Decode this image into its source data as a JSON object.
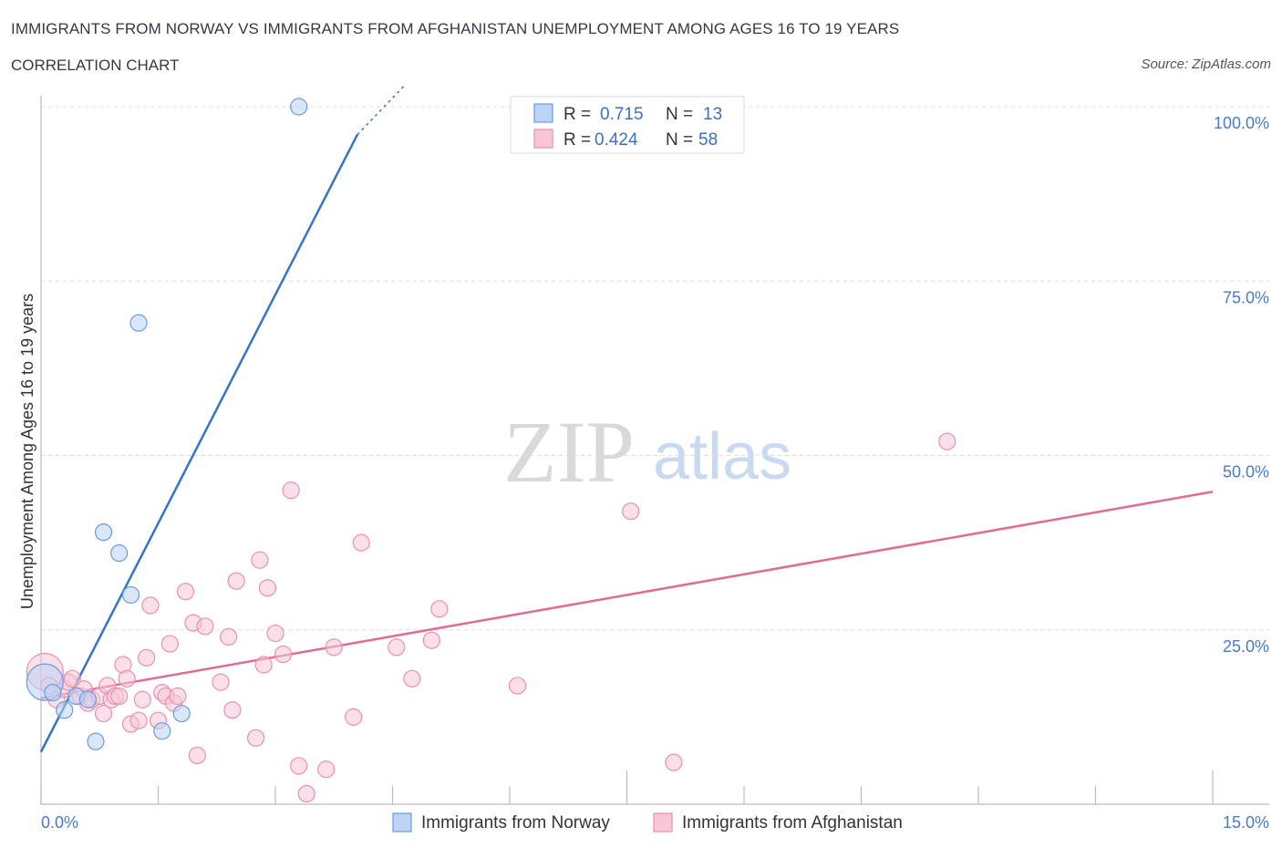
{
  "header": {
    "title": "IMMIGRANTS FROM NORWAY VS IMMIGRANTS FROM AFGHANISTAN UNEMPLOYMENT AMONG AGES 16 TO 19 YEARS",
    "subtitle": "CORRELATION CHART",
    "source": "Source: ZipAtlas.com"
  },
  "watermark": {
    "zip": "ZIP",
    "atlas": "atlas"
  },
  "colors": {
    "norway_fill": "#bcd4f5",
    "norway_stroke": "#6b9be0",
    "norway_line": "#3673c9",
    "afghan_fill": "#f8c6d6",
    "afghan_stroke": "#e890ae",
    "afghan_line": "#e06b95",
    "tick": "#4a7cc4",
    "grid": "#dddddd"
  },
  "legend_top": {
    "rows": [
      {
        "r_label": "R =",
        "r_value": "0.715",
        "n_label": "N =",
        "n_value": "13"
      },
      {
        "r_label": "R =",
        "r_value": "0.424",
        "n_label": "N =",
        "n_value": "58"
      }
    ]
  },
  "legend_bottom": {
    "items": [
      "Immigrants from Norway",
      "Immigrants from Afghanistan"
    ]
  },
  "chart_data": {
    "type": "scatter",
    "title": "IMMIGRANTS FROM NORWAY VS IMMIGRANTS FROM AFGHANISTAN UNEMPLOYMENT AMONG AGES 16 TO 19 YEARS",
    "xlabel": "",
    "ylabel": "Unemployment Among Ages 16 to 19 years",
    "xlim": [
      0,
      15
    ],
    "ylim": [
      0,
      100
    ],
    "x_tick_labels": [
      "0.0%",
      "15.0%"
    ],
    "y_tick_labels": [
      "100.0%",
      "75.0%",
      "50.0%",
      "25.0%"
    ],
    "y_ticks": [
      100,
      75,
      50,
      25
    ],
    "grid": true,
    "series": [
      {
        "name": "Immigrants from Norway",
        "R": 0.715,
        "N": 13,
        "trend": {
          "x": [
            0.0,
            4.05
          ],
          "y": [
            7.5,
            96.0
          ]
        },
        "points": [
          {
            "x": 0.05,
            "y": 17.5,
            "large": true
          },
          {
            "x": 0.15,
            "y": 16.0
          },
          {
            "x": 0.3,
            "y": 13.5
          },
          {
            "x": 0.45,
            "y": 15.5
          },
          {
            "x": 0.6,
            "y": 15.0
          },
          {
            "x": 0.7,
            "y": 9.0
          },
          {
            "x": 0.8,
            "y": 39.0
          },
          {
            "x": 1.0,
            "y": 36.0
          },
          {
            "x": 1.15,
            "y": 30.0
          },
          {
            "x": 1.25,
            "y": 69.0
          },
          {
            "x": 1.55,
            "y": 10.5
          },
          {
            "x": 1.8,
            "y": 13.0
          },
          {
            "x": 3.3,
            "y": 100.0
          }
        ]
      },
      {
        "name": "Immigrants from Afghanistan",
        "R": 0.424,
        "N": 58,
        "trend": {
          "x": [
            0.0,
            15.0
          ],
          "y": [
            15.2,
            44.8
          ]
        },
        "points": [
          {
            "x": 0.05,
            "y": 19.0,
            "large": true
          },
          {
            "x": 0.1,
            "y": 17.0
          },
          {
            "x": 0.2,
            "y": 15.0
          },
          {
            "x": 0.3,
            "y": 16.5
          },
          {
            "x": 0.35,
            "y": 17.5
          },
          {
            "x": 0.4,
            "y": 18.0
          },
          {
            "x": 0.5,
            "y": 15.5
          },
          {
            "x": 0.55,
            "y": 16.5
          },
          {
            "x": 0.6,
            "y": 14.5
          },
          {
            "x": 0.65,
            "y": 15.0
          },
          {
            "x": 0.75,
            "y": 15.5
          },
          {
            "x": 0.8,
            "y": 13.0
          },
          {
            "x": 0.85,
            "y": 17.0
          },
          {
            "x": 0.9,
            "y": 15.0
          },
          {
            "x": 0.95,
            "y": 15.5
          },
          {
            "x": 1.0,
            "y": 15.5
          },
          {
            "x": 1.05,
            "y": 20.0
          },
          {
            "x": 1.1,
            "y": 18.0
          },
          {
            "x": 1.15,
            "y": 11.5
          },
          {
            "x": 1.25,
            "y": 12.0
          },
          {
            "x": 1.3,
            "y": 15.0
          },
          {
            "x": 1.35,
            "y": 21.0
          },
          {
            "x": 1.4,
            "y": 28.5
          },
          {
            "x": 1.5,
            "y": 12.0
          },
          {
            "x": 1.55,
            "y": 16.0
          },
          {
            "x": 1.6,
            "y": 15.5
          },
          {
            "x": 1.65,
            "y": 23.0
          },
          {
            "x": 1.7,
            "y": 14.5
          },
          {
            "x": 1.75,
            "y": 15.5
          },
          {
            "x": 1.85,
            "y": 30.5
          },
          {
            "x": 1.95,
            "y": 26.0
          },
          {
            "x": 2.0,
            "y": 7.0
          },
          {
            "x": 2.1,
            "y": 25.5
          },
          {
            "x": 2.3,
            "y": 17.5
          },
          {
            "x": 2.4,
            "y": 24.0
          },
          {
            "x": 2.45,
            "y": 13.5
          },
          {
            "x": 2.5,
            "y": 32.0
          },
          {
            "x": 2.75,
            "y": 9.5
          },
          {
            "x": 2.8,
            "y": 35.0
          },
          {
            "x": 2.85,
            "y": 20.0
          },
          {
            "x": 2.9,
            "y": 31.0
          },
          {
            "x": 3.0,
            "y": 24.5
          },
          {
            "x": 3.1,
            "y": 21.5
          },
          {
            "x": 3.2,
            "y": 45.0
          },
          {
            "x": 3.3,
            "y": 5.5
          },
          {
            "x": 3.4,
            "y": 1.5
          },
          {
            "x": 3.65,
            "y": 5.0
          },
          {
            "x": 3.75,
            "y": 22.5
          },
          {
            "x": 4.0,
            "y": 12.5
          },
          {
            "x": 4.1,
            "y": 37.5
          },
          {
            "x": 4.55,
            "y": 22.5
          },
          {
            "x": 4.75,
            "y": 18.0
          },
          {
            "x": 5.0,
            "y": 23.5
          },
          {
            "x": 5.1,
            "y": 28.0
          },
          {
            "x": 6.1,
            "y": 17.0
          },
          {
            "x": 7.55,
            "y": 42.0
          },
          {
            "x": 8.1,
            "y": 6.0
          },
          {
            "x": 11.6,
            "y": 52.0
          }
        ]
      }
    ]
  }
}
